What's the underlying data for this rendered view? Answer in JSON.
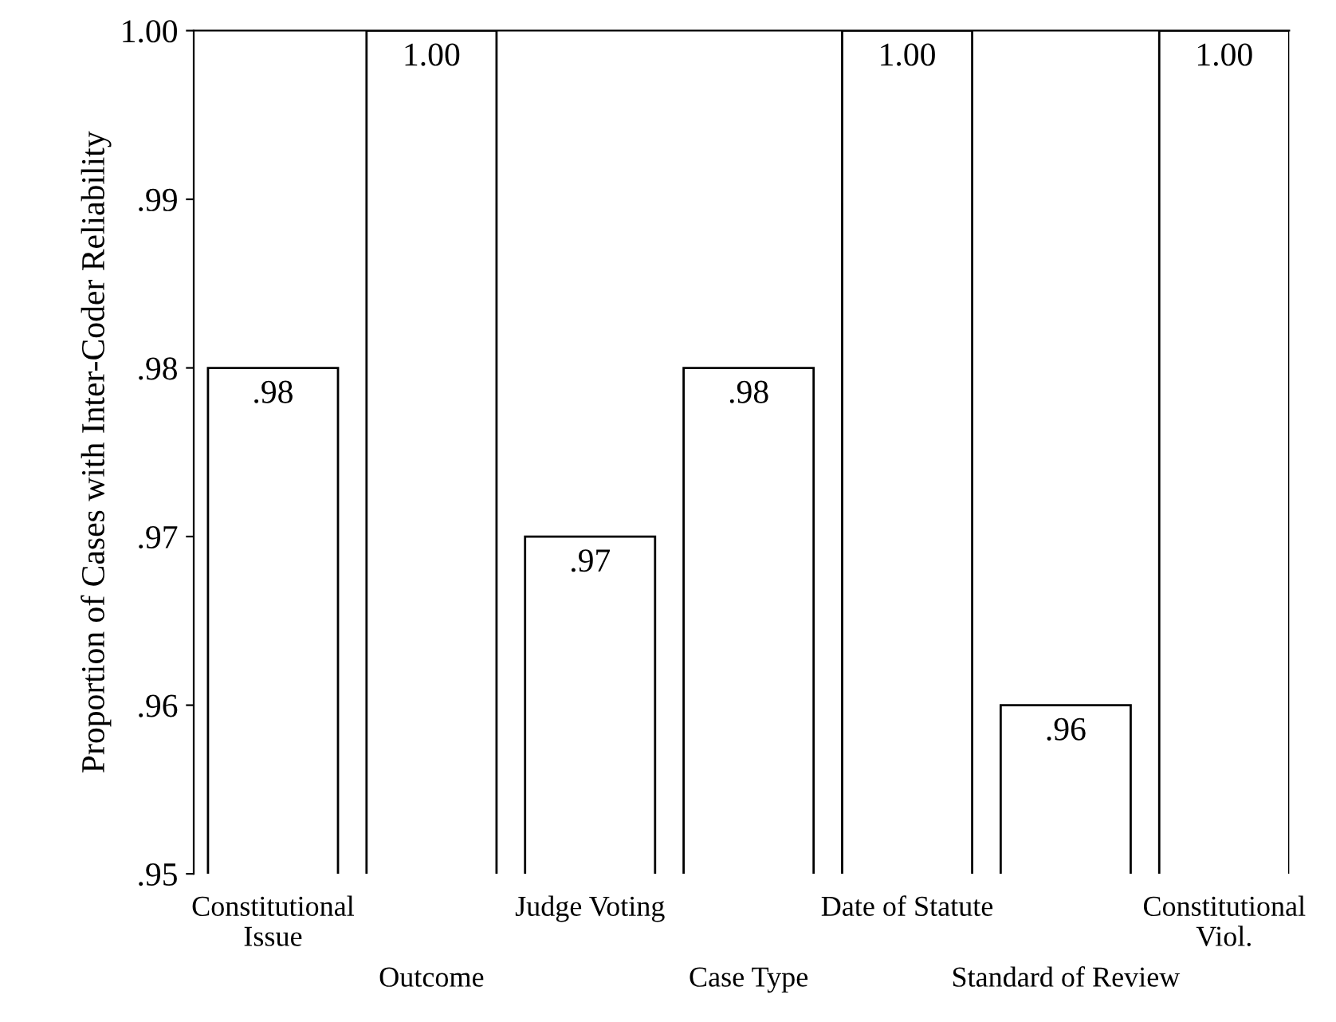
{
  "chart_data": {
    "type": "bar",
    "ylabel": "Proportion of Cases with Inter-Coder Reliability",
    "categories": [
      "Constitutional\nIssue",
      "Outcome",
      "Judge Voting",
      "Case Type",
      "Date of Statute",
      "Standard of Review",
      "Constitutional\nViol."
    ],
    "values": [
      0.98,
      1.0,
      0.97,
      0.98,
      1.0,
      0.96,
      1.0
    ],
    "value_labels": [
      ".98",
      "1.00",
      ".97",
      ".98",
      "1.00",
      ".96",
      "1.00"
    ],
    "color": "#ffffff",
    "ylim": [
      0.95,
      1.0
    ],
    "yticks": [
      {
        "value": 0.95,
        "label": ".95"
      },
      {
        "value": 0.96,
        "label": ".96"
      },
      {
        "value": 0.97,
        "label": ".97"
      },
      {
        "value": 0.98,
        "label": ".98"
      },
      {
        "value": 0.99,
        "label": ".99"
      },
      {
        "value": 1.0,
        "label": "1.00"
      }
    ],
    "grid": false,
    "legend": false
  }
}
